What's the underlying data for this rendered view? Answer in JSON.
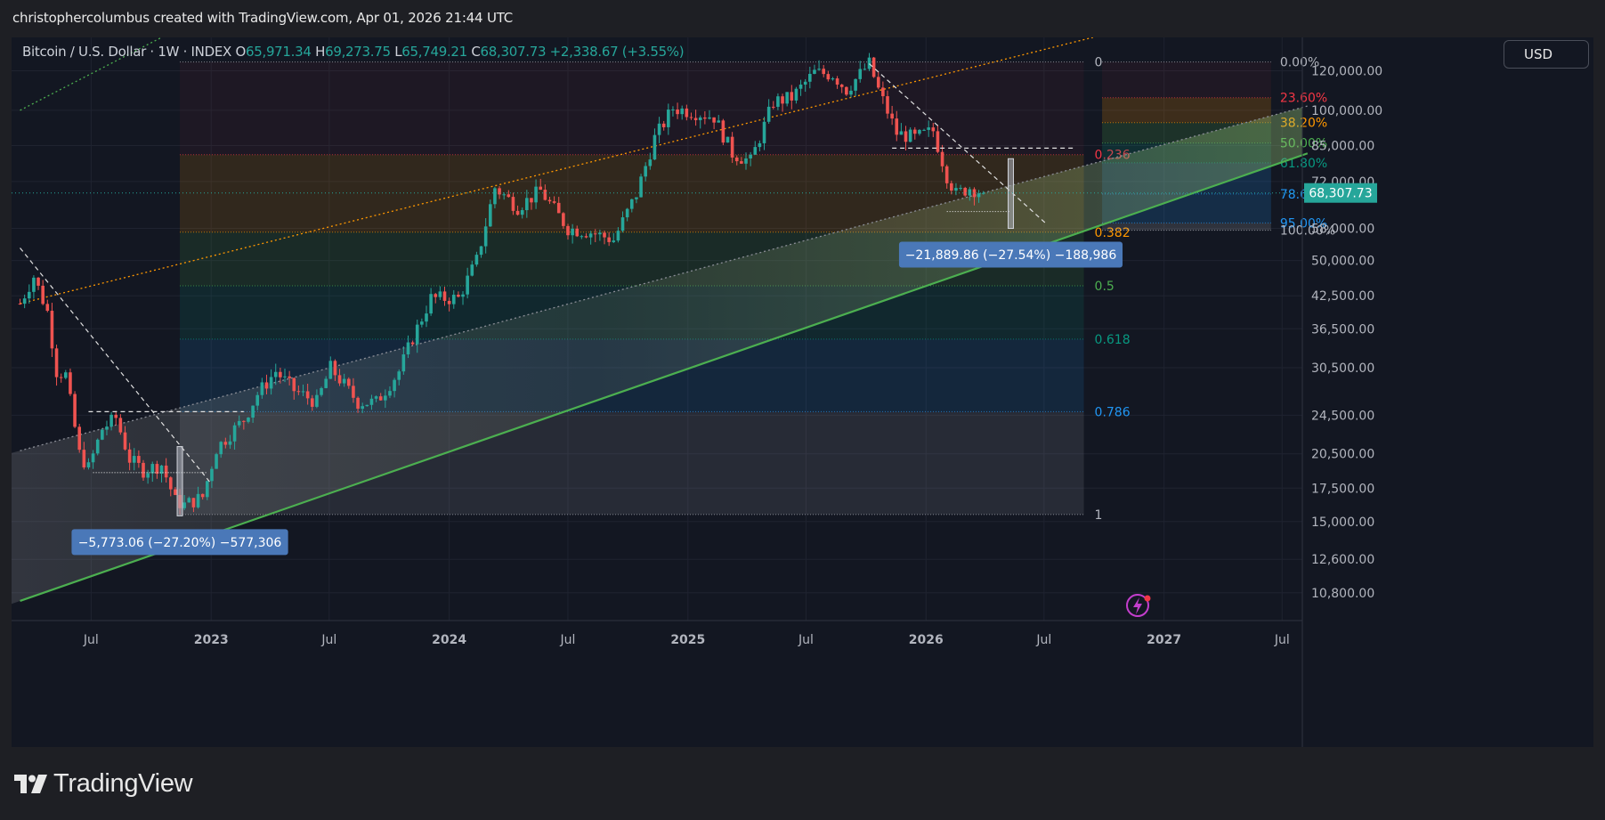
{
  "header": {
    "title": "christophercolumbus created with TradingView.com, Apr 01, 2026 21:44 UTC"
  },
  "symbol": {
    "name": "Bitcoin / U.S. Dollar · 1W · INDEX",
    "open_label": "O",
    "open": "65,971.34",
    "high_label": "H",
    "high": "69,273.75",
    "low_label": "L",
    "low": "65,749.21",
    "close_label": "C",
    "close": "68,307.73",
    "change": "+2,338.67 (+3.55%)"
  },
  "currency_button": {
    "label": "USD"
  },
  "brand": {
    "logo_text": "TradingView"
  },
  "chart_data": {
    "type": "candlestick",
    "y_scale": "log",
    "ylim": [
      9500,
      140000
    ],
    "x_range": [
      "2022-03",
      "2027-08"
    ],
    "grid": true,
    "y_ticks": [
      "120,000.00",
      "100,000.00",
      "85,000.00",
      "72,000.00",
      "58,000.00",
      "50,000.00",
      "42,500.00",
      "36,500.00",
      "30,500.00",
      "24,500.00",
      "20,500.00",
      "17,500.00",
      "15,000.00",
      "12,600.00",
      "10,800.00"
    ],
    "y_tick_values": [
      120000,
      100000,
      85000,
      72000,
      58000,
      50000,
      42500,
      36500,
      30500,
      24500,
      20500,
      17500,
      15000,
      12600,
      10800
    ],
    "x_ticks": [
      {
        "label": "Jul",
        "date": "2022-07"
      },
      {
        "label": "2023",
        "date": "2023-01"
      },
      {
        "label": "Jul",
        "date": "2023-07"
      },
      {
        "label": "2024",
        "date": "2024-01"
      },
      {
        "label": "Jul",
        "date": "2024-07"
      },
      {
        "label": "2025",
        "date": "2025-01"
      },
      {
        "label": "Jul",
        "date": "2025-07"
      },
      {
        "label": "2026",
        "date": "2026-01"
      },
      {
        "label": "Jul",
        "date": "2026-07"
      },
      {
        "label": "2027",
        "date": "2027-01"
      },
      {
        "label": "Jul",
        "date": "2027-07"
      }
    ],
    "last_price": {
      "label": "68,307.73",
      "value": 68307.73,
      "color": "#26a69a"
    },
    "colors": {
      "up": "#26a69a",
      "down": "#ef5350"
    },
    "price_path": [
      [
        "2022-03-14",
        41000
      ],
      [
        "2022-04-04",
        46500
      ],
      [
        "2022-04-25",
        39500
      ],
      [
        "2022-05-09",
        30000
      ],
      [
        "2022-05-23",
        29500
      ],
      [
        "2022-06-13",
        20500
      ],
      [
        "2022-06-27",
        19200
      ],
      [
        "2022-07-18",
        23000
      ],
      [
        "2022-08-08",
        24200
      ],
      [
        "2022-08-29",
        20000
      ],
      [
        "2022-09-19",
        19000
      ],
      [
        "2022-10-17",
        19500
      ],
      [
        "2022-11-07",
        16500
      ],
      [
        "2022-11-21",
        16200
      ],
      [
        "2022-12-19",
        16800
      ],
      [
        "2023-01-09",
        21000
      ],
      [
        "2023-02-06",
        23000
      ],
      [
        "2023-02-20",
        24000
      ],
      [
        "2023-03-13",
        27000
      ],
      [
        "2023-04-10",
        30000
      ],
      [
        "2023-05-08",
        27500
      ],
      [
        "2023-06-12",
        26000
      ],
      [
        "2023-07-03",
        30500
      ],
      [
        "2023-08-14",
        26000
      ],
      [
        "2023-09-11",
        26000
      ],
      [
        "2023-10-16",
        30000
      ],
      [
        "2023-11-06",
        35000
      ],
      [
        "2023-12-04",
        42000
      ],
      [
        "2024-01-15",
        42000
      ],
      [
        "2024-02-12",
        50000
      ],
      [
        "2024-03-11",
        70000
      ],
      [
        "2024-04-15",
        64000
      ],
      [
        "2024-05-20",
        69000
      ],
      [
        "2024-07-01",
        58000
      ],
      [
        "2024-08-05",
        57000
      ],
      [
        "2024-09-09",
        55000
      ],
      [
        "2024-10-14",
        68000
      ],
      [
        "2024-11-11",
        88000
      ],
      [
        "2024-12-09",
        101000
      ],
      [
        "2025-01-13",
        99000
      ],
      [
        "2025-02-10",
        97000
      ],
      [
        "2025-03-10",
        82000
      ],
      [
        "2025-04-07",
        79000
      ],
      [
        "2025-05-12",
        104000
      ],
      [
        "2025-06-09",
        106000
      ],
      [
        "2025-07-14",
        119000
      ],
      [
        "2025-08-11",
        118000
      ],
      [
        "2025-09-01",
        110000
      ],
      [
        "2025-10-06",
        124000
      ],
      [
        "2025-10-20",
        110000
      ],
      [
        "2025-11-17",
        90000
      ],
      [
        "2025-12-15",
        88000
      ],
      [
        "2026-01-12",
        91000
      ],
      [
        "2026-02-02",
        74000
      ],
      [
        "2026-02-16",
        68000
      ],
      [
        "2026-03-09",
        70000
      ],
      [
        "2026-03-30",
        68307.73
      ]
    ],
    "fibonacci_retracement": {
      "levels": [
        {
          "label": "0",
          "value": 125000,
          "color": "#b2b5be"
        },
        {
          "label": "0.236",
          "value": 81500,
          "color": "#f23645"
        },
        {
          "label": "0.382",
          "value": 57000,
          "color": "#ff9800"
        },
        {
          "label": "0.5",
          "value": 44500,
          "color": "#4caf50"
        },
        {
          "label": "0.618",
          "value": 34800,
          "color": "#089981"
        },
        {
          "label": "0.786",
          "value": 24900,
          "color": "#2196f3"
        },
        {
          "label": "1",
          "value": 15500,
          "color": "#b2b5be"
        }
      ],
      "x_start": "2022-11-14",
      "x_end": "2026-08-31"
    },
    "fibonacci_extension": {
      "levels": [
        {
          "label": "0.00%",
          "value": 125000,
          "color": "#b2b5be"
        },
        {
          "label": "23.60%",
          "value": 106000,
          "color": "#f23645"
        },
        {
          "label": "38.20%",
          "value": 94500,
          "color": "#ff9800"
        },
        {
          "label": "50.00%",
          "value": 86000,
          "color": "#4caf50"
        },
        {
          "label": "61.80%",
          "value": 78500,
          "color": "#089981"
        },
        {
          "label": "78.60%",
          "value": 68000,
          "color": "#2196f3"
        },
        {
          "label": "95.00%",
          "value": 59500,
          "color": "#2196f3"
        },
        {
          "label": "100.00%",
          "value": 57500,
          "color": "#b2b5be"
        }
      ],
      "x_start": "2026-09-28",
      "x_end": "2027-06-14"
    },
    "channels": [
      {
        "name": "orange-upper",
        "color": "#ff9800",
        "style": "dotted",
        "p1": [
          "2022-03-14",
          41000
        ],
        "p2": [
          "2026-09-14",
          140000
        ]
      },
      {
        "name": "green-upper",
        "color": "#4caf50",
        "style": "dotted",
        "p1": [
          "2022-03-14",
          100000
        ],
        "p2": [
          "2022-10-17",
          140000
        ]
      },
      {
        "name": "channel-mid",
        "color": "#8a8d96",
        "style": "dotted",
        "p1": [
          "2022-03-14",
          20800
        ],
        "p2": [
          "2027-08-09",
          102000
        ]
      },
      {
        "name": "green-support",
        "color": "#4caf50",
        "style": "solid",
        "p1": [
          "2022-03-14",
          10400
        ],
        "p2": [
          "2027-08-09",
          82000
        ]
      }
    ],
    "trendlines_dashed": [
      {
        "p1": [
          "2022-03-14",
          53000
        ],
        "p2": [
          "2023-01-02",
          17800
        ]
      },
      {
        "p1": [
          "2025-10-06",
          124000
        ],
        "p2": [
          "2026-07-06",
          59000
        ]
      }
    ],
    "measures": [
      {
        "label": "−5,773.06 (−27.20%) −577,306",
        "x": "2022-11-14",
        "from": 21200,
        "to": 15400
      },
      {
        "label": "−21,889.86 (−27.54%) −188,986",
        "x": "2026-05-11",
        "from": 80000,
        "to": 58000
      }
    ],
    "horizontal_marks": [
      {
        "x1": "2022-06-27",
        "x2": "2023-02-20",
        "value": 24900,
        "style": "dashed"
      },
      {
        "x1": "2022-07-04",
        "x2": "2022-12-26",
        "value": 18800,
        "style": "dotted"
      },
      {
        "x1": "2025-11-10",
        "x2": "2026-08-17",
        "value": 84000,
        "style": "dashed"
      },
      {
        "x1": "2026-02-02",
        "x2": "2026-05-11",
        "value": 62700,
        "style": "dotted"
      }
    ]
  }
}
